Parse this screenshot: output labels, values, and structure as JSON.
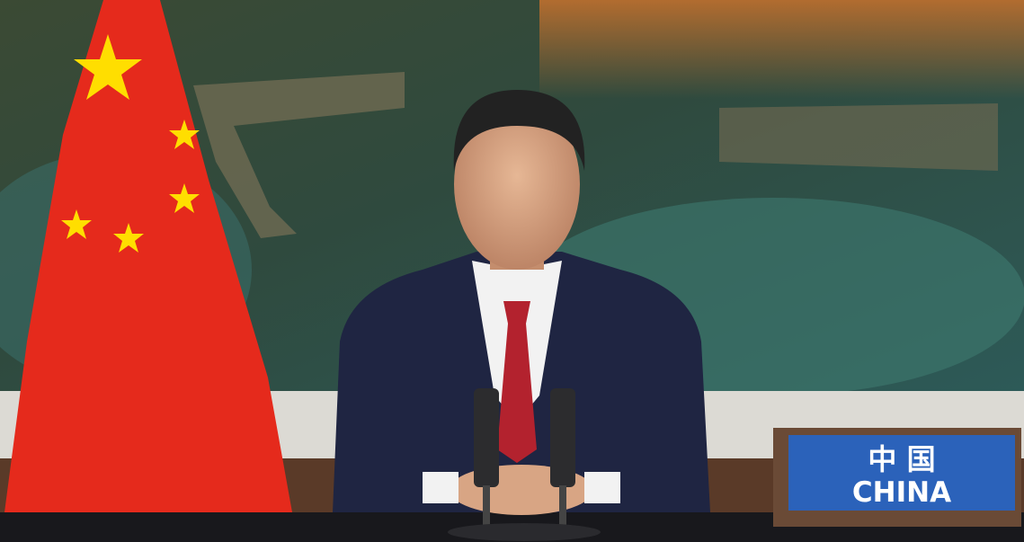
{
  "nameplate": {
    "chinese": "中 国",
    "english": "CHINA"
  }
}
